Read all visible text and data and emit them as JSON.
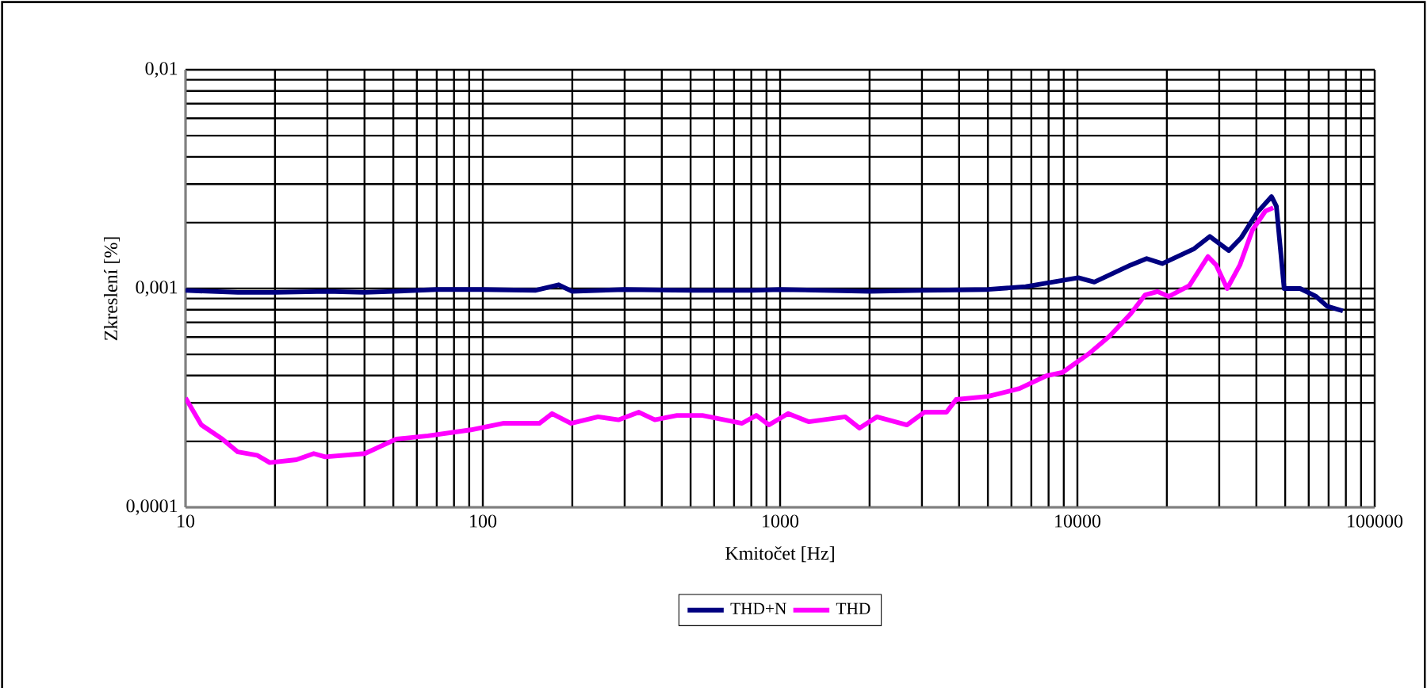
{
  "chart_data": {
    "type": "line",
    "xlabel": "Kmitočet [Hz]",
    "ylabel": "Zkreslení [%]",
    "log": "xy",
    "grid": true,
    "legend": "bottom",
    "xlim": [
      10,
      100000
    ],
    "xticks": [
      10,
      100,
      1000,
      10000,
      100000
    ],
    "ylim": [
      0.0001,
      0.01
    ],
    "yticks": [
      {
        "value": 0.0001,
        "label": "0,0001"
      },
      {
        "value": 0.001,
        "label": "0,001"
      },
      {
        "value": 0.01,
        "label": "0,01"
      }
    ],
    "series": [
      {
        "name": "THD+N",
        "color": "#000080",
        "x": [
          10,
          15,
          20,
          30,
          40,
          50,
          70,
          100,
          150,
          180,
          200,
          300,
          500,
          800,
          1000,
          2000,
          3000,
          5000,
          6700,
          10070,
          11400,
          15100,
          17100,
          19300,
          24700,
          27900,
          32300,
          35600,
          40300,
          45000,
          46700,
          49600,
          56100,
          63500,
          69200,
          78200
        ],
        "values": [
          0.00098,
          0.00096,
          0.00096,
          0.00097,
          0.00096,
          0.00097,
          0.00099,
          0.00099,
          0.00098,
          0.00104,
          0.00097,
          0.00099,
          0.00098,
          0.00098,
          0.00099,
          0.00097,
          0.00098,
          0.00099,
          0.00102,
          0.00112,
          0.00107,
          0.00128,
          0.00137,
          0.0013,
          0.00152,
          0.00173,
          0.00149,
          0.00171,
          0.00223,
          0.00263,
          0.00238,
          0.001,
          0.001,
          0.00092,
          0.00083,
          0.00079
        ]
      },
      {
        "name": "THD",
        "color": "#ff00ff",
        "x": [
          10,
          11.3,
          13.3,
          15,
          17.4,
          19.2,
          23.6,
          27,
          29.5,
          40.1,
          51.2,
          65.4,
          91.2,
          117,
          155,
          171,
          198,
          244,
          286,
          335,
          379,
          450,
          548,
          745,
          832,
          918,
          1064,
          1248,
          1656,
          1850,
          2115,
          2670,
          3056,
          3630,
          3910,
          5000,
          6390,
          7870,
          8900,
          10960,
          12860,
          15100,
          16900,
          18600,
          20300,
          23800,
          27500,
          29300,
          31900,
          35200,
          38800,
          42900,
          45600
        ],
        "values": [
          0.000316,
          0.000238,
          0.000205,
          0.000179,
          0.000173,
          0.00016,
          0.000165,
          0.000176,
          0.00017,
          0.000176,
          0.000205,
          0.000212,
          0.000226,
          0.000242,
          0.000242,
          0.000268,
          0.000242,
          0.000259,
          0.000251,
          0.000272,
          0.000251,
          0.000263,
          0.000263,
          0.000242,
          0.000263,
          0.000238,
          0.000268,
          0.000246,
          0.000259,
          0.00023,
          0.000259,
          0.000238,
          0.000272,
          0.000272,
          0.000311,
          0.000321,
          0.000349,
          0.000399,
          0.000413,
          0.000505,
          0.000607,
          0.000766,
          0.000935,
          0.000968,
          0.00092,
          0.00103,
          0.0014,
          0.00128,
          0.001,
          0.00128,
          0.00185,
          0.00226,
          0.00234
        ]
      }
    ]
  }
}
